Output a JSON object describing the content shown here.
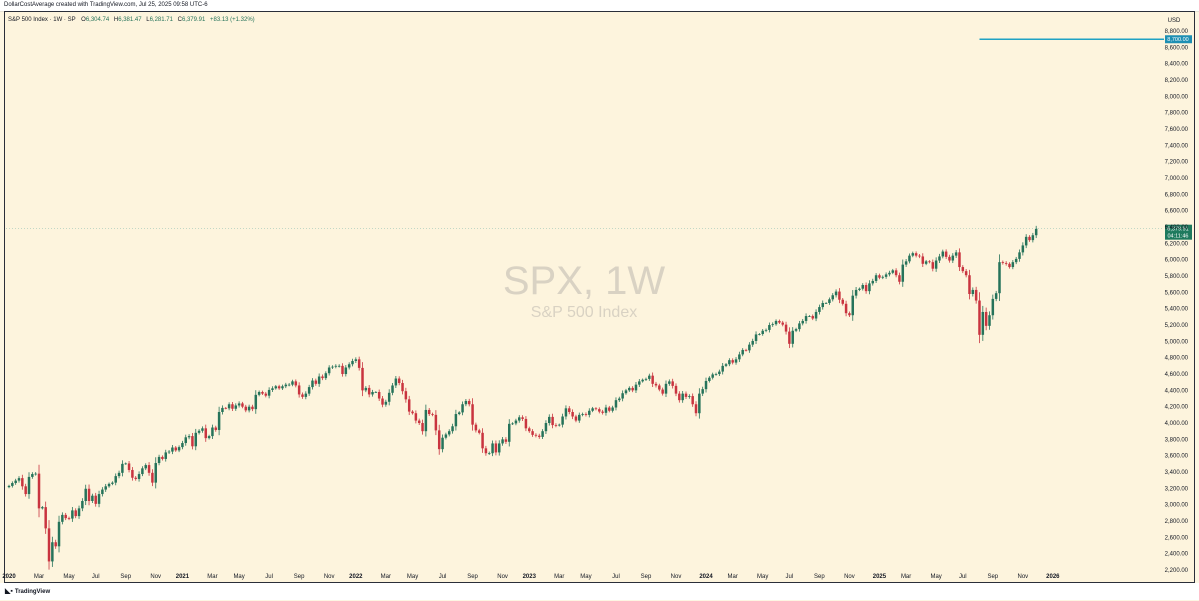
{
  "header": {
    "attribution": "DollarCostAverage created with TradingView.com, Jul 25, 2025 09:58 UTC-6"
  },
  "footer": {
    "brand": "TradingView",
    "logo_icon": "tradingview-logo-icon"
  },
  "colors": {
    "up": "#26735a",
    "down": "#c9343f",
    "background": "#fdf4dd",
    "cyan_line": "#1fa2c4",
    "price_tag": "#1e7a5e"
  },
  "chart_data": {
    "type": "candlestick",
    "title": "S&P 500 Index · 1W · SP",
    "legend": {
      "symbol": "S&P 500 Index · 1W · SP",
      "open_label": "O",
      "open": "6,304.74",
      "high_label": "H",
      "high": "6,381.47",
      "low_label": "L",
      "low": "6,281.71",
      "close_label": "C",
      "close": "6,379.91",
      "change": "+83.13 (+1.32%)"
    },
    "watermark": {
      "ticker": "SPX, 1W",
      "name": "S&P 500 Index"
    },
    "currency": "USD",
    "ylim": [
      2200,
      8850
    ],
    "y_ticks": [
      "8,800.00",
      "8,600.00",
      "8,400.00",
      "8,200.00",
      "8,000.00",
      "7,800.00",
      "7,600.00",
      "7,400.00",
      "7,200.00",
      "7,000.00",
      "6,800.00",
      "6,600.00",
      "6,400.00",
      "6,200.00",
      "6,000.00",
      "5,800.00",
      "5,600.00",
      "5,400.00",
      "5,200.00",
      "5,000.00",
      "4,800.00",
      "4,600.00",
      "4,400.00",
      "4,200.00",
      "4,000.00",
      "3,800.00",
      "3,600.00",
      "3,400.00",
      "3,200.00",
      "3,000.00",
      "2,800.00",
      "2,600.00",
      "2,400.00",
      "2,200.00"
    ],
    "x_ticks": [
      {
        "label": "2020",
        "week": 0,
        "bold": true
      },
      {
        "label": "Mar",
        "week": 9
      },
      {
        "label": "May",
        "week": 18
      },
      {
        "label": "Jul",
        "week": 26
      },
      {
        "label": "Sep",
        "week": 35
      },
      {
        "label": "Nov",
        "week": 44
      },
      {
        "label": "2021",
        "week": 52,
        "bold": true
      },
      {
        "label": "Mar",
        "week": 61
      },
      {
        "label": "May",
        "week": 69
      },
      {
        "label": "Jul",
        "week": 78
      },
      {
        "label": "Sep",
        "week": 87
      },
      {
        "label": "Nov",
        "week": 96
      },
      {
        "label": "2022",
        "week": 104,
        "bold": true
      },
      {
        "label": "Mar",
        "week": 113
      },
      {
        "label": "May",
        "week": 121
      },
      {
        "label": "Jul",
        "week": 130
      },
      {
        "label": "Sep",
        "week": 139
      },
      {
        "label": "Nov",
        "week": 148
      },
      {
        "label": "2023",
        "week": 156,
        "bold": true
      },
      {
        "label": "Mar",
        "week": 165
      },
      {
        "label": "May",
        "week": 173
      },
      {
        "label": "Jul",
        "week": 182
      },
      {
        "label": "Sep",
        "week": 191
      },
      {
        "label": "Nov",
        "week": 200
      },
      {
        "label": "2024",
        "week": 209,
        "bold": true
      },
      {
        "label": "Mar",
        "week": 217
      },
      {
        "label": "May",
        "week": 226
      },
      {
        "label": "Jul",
        "week": 234
      },
      {
        "label": "Sep",
        "week": 243
      },
      {
        "label": "Nov",
        "week": 252
      },
      {
        "label": "2025",
        "week": 261,
        "bold": true
      },
      {
        "label": "Mar",
        "week": 269
      },
      {
        "label": "May",
        "week": 278
      },
      {
        "label": "Jul",
        "week": 286
      },
      {
        "label": "Sep",
        "week": 295
      },
      {
        "label": "Nov",
        "week": 304
      },
      {
        "label": "2026",
        "week": 313,
        "bold": true
      }
    ],
    "price_label": {
      "value": 6379.91,
      "text": "6,379.91",
      "countdown": "04:11:46"
    },
    "horizontal_line": {
      "value": 8700,
      "text": "8,700.00",
      "start_week": 291
    },
    "closes": [
      3230,
      3265,
      3295,
      3325,
      3225,
      3130,
      3340,
      3375,
      3380,
      2955,
      2970,
      2710,
      2305,
      2540,
      2490,
      2790,
      2875,
      2835,
      2830,
      2930,
      2860,
      2955,
      3045,
      3195,
      3045,
      3110,
      3010,
      3130,
      3185,
      3225,
      3255,
      3270,
      3350,
      3390,
      3500,
      3505,
      3425,
      3330,
      3315,
      3375,
      3445,
      3485,
      3390,
      3270,
      3510,
      3585,
      3560,
      3640,
      3650,
      3700,
      3665,
      3705,
      3755,
      3825,
      3840,
      3715,
      3880,
      3905,
      3935,
      3815,
      3840,
      3945,
      3915,
      4135,
      4185,
      4180,
      4230,
      4175,
      4215,
      4240,
      4200,
      4155,
      4200,
      4170,
      4345,
      4380,
      4360,
      4335,
      4405,
      4425,
      4450,
      4425,
      4450,
      4470,
      4470,
      4510,
      4460,
      4350,
      4320,
      4360,
      4440,
      4520,
      4480,
      4570,
      4550,
      4610,
      4680,
      4690,
      4700,
      4700,
      4600,
      4680,
      4720,
      4760,
      4780,
      4675,
      4400,
      4430,
      4350,
      4380,
      4380,
      4300,
      4225,
      4260,
      4370,
      4460,
      4545,
      4490,
      4390,
      4290,
      4140,
      4120,
      4030,
      4000,
      3900,
      4160,
      4110,
      4100,
      3910,
      3680,
      3820,
      3860,
      3900,
      3960,
      4110,
      4130,
      4230,
      4270,
      4230,
      3980,
      3910,
      3880,
      3690,
      3630,
      3630,
      3750,
      3640,
      3750,
      3800,
      3770,
      3990,
      3995,
      4030,
      4070,
      4050,
      3935,
      3900,
      3855,
      3845,
      3830,
      3900,
      4000,
      4075,
      3975,
      3970,
      3980,
      4080,
      4180,
      4135,
      4080,
      4030,
      4100,
      4110,
      4100,
      4150,
      4180,
      4170,
      4140,
      4125,
      4190,
      4150,
      4190,
      4280,
      4300,
      4365,
      4400,
      4430,
      4400,
      4470,
      4510,
      4530,
      4540,
      4580,
      4480,
      4460,
      4410,
      4360,
      4480,
      4510,
      4455,
      4360,
      4280,
      4360,
      4320,
      4330,
      4230,
      4120,
      4360,
      4415,
      4515,
      4555,
      4595,
      4600,
      4630,
      4700,
      4720,
      4770,
      4740,
      4780,
      4840,
      4895,
      4890,
      4960,
      5005,
      5085,
      5090,
      5130,
      5140,
      5200,
      5210,
      5250,
      5230,
      5205,
      5120,
      4970,
      5130,
      5150,
      5220,
      5250,
      5310,
      5310,
      5280,
      5360,
      5420,
      5470,
      5470,
      5515,
      5565,
      5610,
      5510,
      5460,
      5345,
      5320,
      5560,
      5630,
      5645,
      5690,
      5615,
      5710,
      5740,
      5810,
      5780,
      5790,
      5820,
      5840,
      5870,
      5810,
      5730,
      5940,
      5980,
      6050,
      6080,
      6050,
      6040,
      5950,
      5980,
      5970,
      5890,
      5990,
      6040,
      6100,
      6035,
      5990,
      6050,
      6090,
      5910,
      5860,
      5810,
      5580,
      5630,
      5500,
      5080,
      5360,
      5190,
      5320,
      5520,
      5590,
      5970,
      5960,
      5950,
      5910,
      5970,
      6010,
      6090,
      6175,
      6280,
      6240,
      6300,
      6379.91
    ]
  }
}
